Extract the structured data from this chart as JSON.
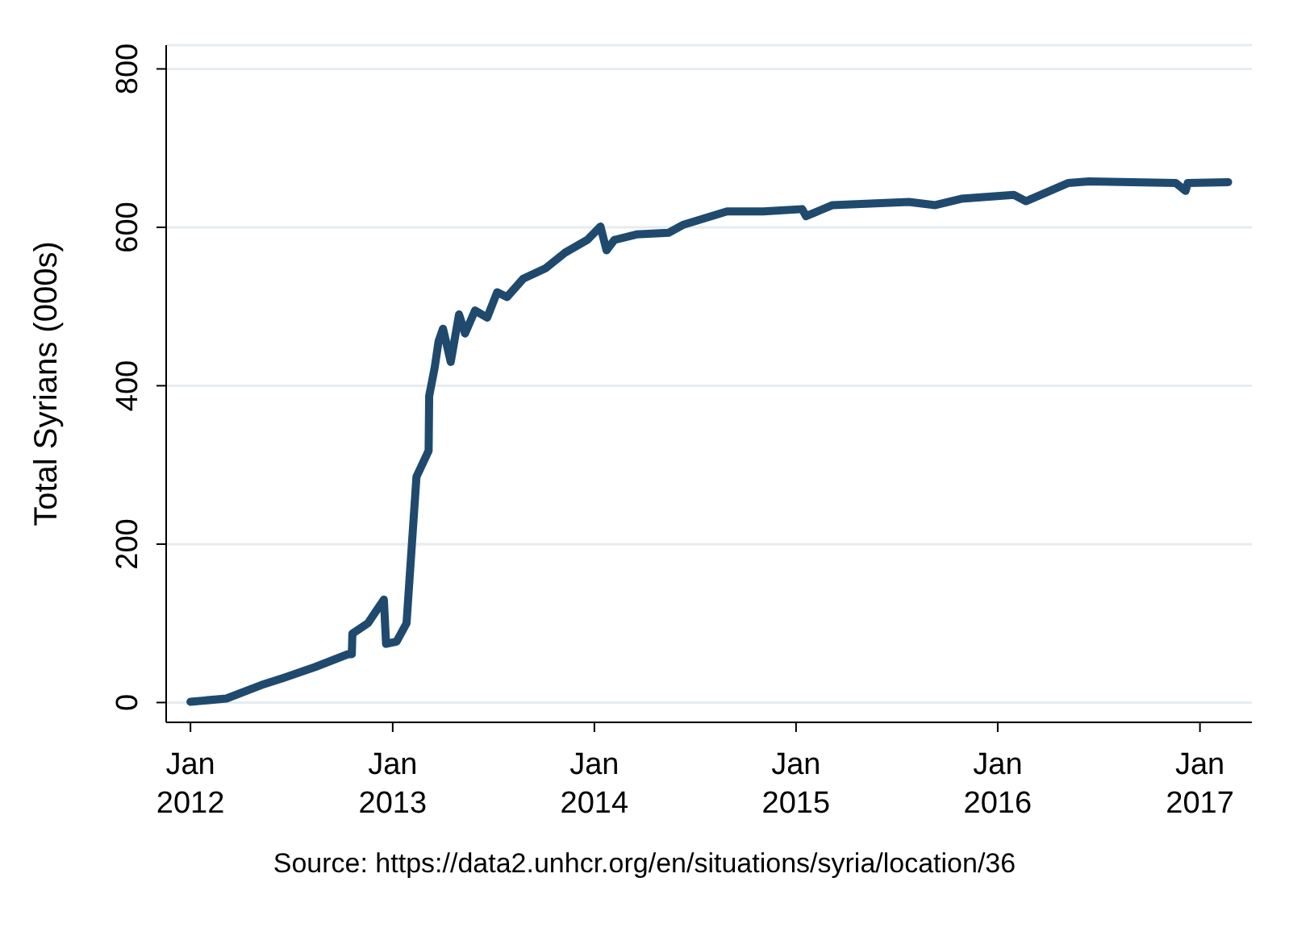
{
  "chart_data": {
    "type": "line",
    "ylabel": "Total Syrians (000s)",
    "annotations": [
      "Source: https://data2.unhcr.org/en/situations/syria/location/36"
    ],
    "x": [
      "2012-01-01",
      "2012-03-06",
      "2012-05-08",
      "2012-06-17",
      "2012-08-14",
      "2012-10-12",
      "2012-10-19",
      "2012-10-20",
      "2012-11-17",
      "2012-12-16",
      "2012-12-20",
      "2013-01-08",
      "2013-01-26",
      "2013-02-13",
      "2013-03-07",
      "2013-03-08",
      "2013-03-18",
      "2013-03-25",
      "2013-04-02",
      "2013-04-16",
      "2013-05-01",
      "2013-05-12",
      "2013-05-30",
      "2013-06-21",
      "2013-07-09",
      "2013-07-27",
      "2013-08-25",
      "2013-10-04",
      "2013-11-09",
      "2013-12-19",
      "2014-01-12",
      "2014-01-23",
      "2014-02-06",
      "2014-03-18",
      "2014-05-15",
      "2014-06-10",
      "2014-08-29",
      "2014-11-03",
      "2015-01-12",
      "2015-01-19",
      "2015-03-08",
      "2015-07-24",
      "2015-09-10",
      "2015-10-27",
      "2016-01-30",
      "2016-02-21",
      "2016-05-08",
      "2016-06-14",
      "2016-11-18",
      "2016-12-06",
      "2016-12-10",
      "2017-02-21"
    ],
    "series": [
      {
        "color": "#1f4a6e",
        "values": [
          1,
          5,
          22,
          31,
          45,
          61,
          61,
          87,
          100,
          130,
          74,
          77,
          100,
          285,
          318,
          387,
          423,
          456,
          472,
          430,
          490,
          466,
          495,
          486,
          518,
          512,
          535,
          548,
          568,
          584,
          601,
          571,
          584,
          591,
          593,
          603,
          620,
          620,
          623,
          614,
          628,
          632,
          628,
          636,
          641,
          633,
          656,
          658,
          656,
          646,
          656,
          657
        ]
      }
    ],
    "xlim": [
      "2011-11-18",
      "2017-04-05"
    ],
    "xticks": [
      {
        "value": "2012-01-01",
        "label": "Jan\n2012"
      },
      {
        "value": "2013-01-01",
        "label": "Jan\n2013"
      },
      {
        "value": "2014-01-01",
        "label": "Jan\n2014"
      },
      {
        "value": "2015-01-01",
        "label": "Jan\n2015"
      },
      {
        "value": "2016-01-01",
        "label": "Jan\n2016"
      },
      {
        "value": "2017-01-01",
        "label": "Jan\n2017"
      }
    ],
    "ylim": [
      -25,
      830
    ],
    "yticks": [
      0,
      200,
      400,
      600,
      800
    ],
    "grid": "y",
    "line_style": "solid",
    "marker": "none"
  }
}
